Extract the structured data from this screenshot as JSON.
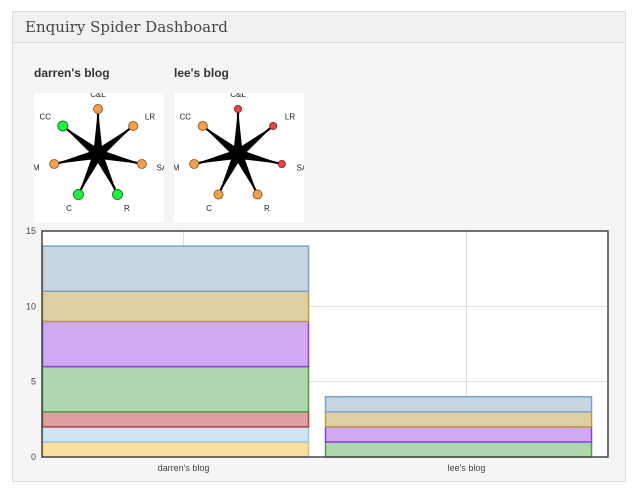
{
  "panel": {
    "title": "Enquiry Spider Dashboard"
  },
  "spiders": [
    {
      "title": "darren's blog",
      "axes": [
        {
          "label": "C&L",
          "status": "orange"
        },
        {
          "label": "LR",
          "status": "orange"
        },
        {
          "label": "SA",
          "status": "orange"
        },
        {
          "label": "R",
          "status": "green"
        },
        {
          "label": "C",
          "status": "green"
        },
        {
          "label": "MM",
          "status": "orange"
        },
        {
          "label": "CC",
          "status": "green"
        }
      ]
    },
    {
      "title": "lee's blog",
      "axes": [
        {
          "label": "C&L",
          "status": "red"
        },
        {
          "label": "LR",
          "status": "red"
        },
        {
          "label": "SA",
          "status": "red"
        },
        {
          "label": "R",
          "status": "orange"
        },
        {
          "label": "C",
          "status": "orange"
        },
        {
          "label": "MM",
          "status": "orange"
        },
        {
          "label": "CC",
          "status": "orange"
        }
      ]
    }
  ],
  "status_colors": {
    "orange": {
      "fill": "#f0a050",
      "stroke": "#a0602a"
    },
    "green": {
      "fill": "#22ee44",
      "stroke": "#118822"
    },
    "red": {
      "fill": "#e84848",
      "stroke": "#a02020"
    }
  },
  "chart_data": {
    "type": "bar",
    "stacked": true,
    "categories": [
      "darren's blog",
      "lee's blog"
    ],
    "ylim": [
      0,
      15
    ],
    "yticks": [
      0,
      5,
      10,
      15
    ],
    "grid": true,
    "series": [
      {
        "values": [
          1,
          0
        ],
        "fill": "#f9dfa0",
        "stroke": "#e8c060"
      },
      {
        "values": [
          1,
          0
        ],
        "fill": "#d0e4f4",
        "stroke": "#9cc6e8"
      },
      {
        "values": [
          1,
          0
        ],
        "fill": "#dea0a0",
        "stroke": "#c03a3a"
      },
      {
        "values": [
          3,
          1
        ],
        "fill": "#b0d6ae",
        "stroke": "#4a9e48"
      },
      {
        "values": [
          3,
          1
        ],
        "fill": "#cfaaf0",
        "stroke": "#9040d8"
      },
      {
        "values": [
          2,
          1
        ],
        "fill": "#dfd0a4",
        "stroke": "#c09a40"
      },
      {
        "values": [
          3,
          1
        ],
        "fill": "#c8d6e2",
        "stroke": "#7aa4c8"
      }
    ]
  }
}
